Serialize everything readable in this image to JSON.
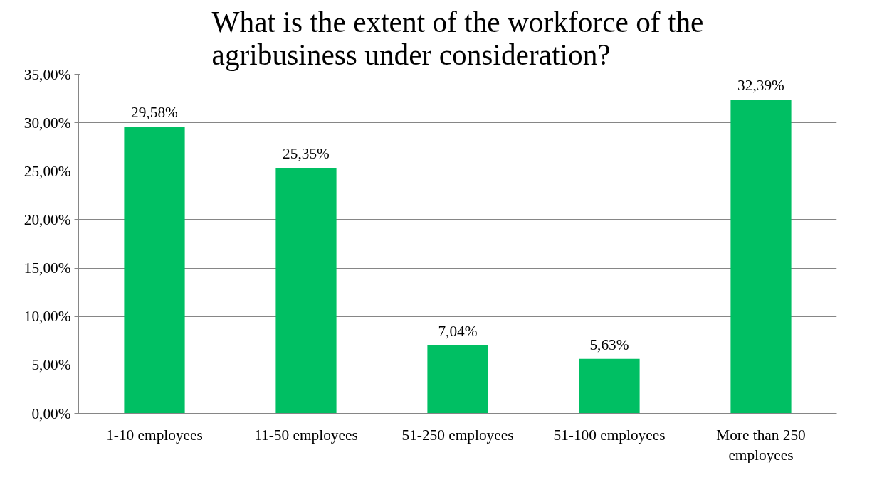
{
  "chart_data": {
    "type": "bar",
    "title": "What is the extent of the workforce of the\nagribusiness under consideration?",
    "categories": [
      "1-10 employees",
      "11-50 employees",
      "51-250 employees",
      "51-100 employees",
      "More than 250\nemployees"
    ],
    "values": [
      29.58,
      25.35,
      7.04,
      5.63,
      32.39
    ],
    "value_labels": [
      "29,58%",
      "25,35%",
      "7,04%",
      "5,63%",
      "32,39%"
    ],
    "color": "#00bf63",
    "ylim": [
      0,
      35
    ],
    "yticks": [
      {
        "value": 0,
        "label": "0,00%"
      },
      {
        "value": 5,
        "label": "5,00%"
      },
      {
        "value": 10,
        "label": "10,00%"
      },
      {
        "value": 15,
        "label": "15,00%"
      },
      {
        "value": 20,
        "label": "20,00%"
      },
      {
        "value": 25,
        "label": "25,00%"
      },
      {
        "value": 30,
        "label": "30,00%"
      },
      {
        "value": 35,
        "label": "35,00%"
      }
    ],
    "grid": "y"
  }
}
